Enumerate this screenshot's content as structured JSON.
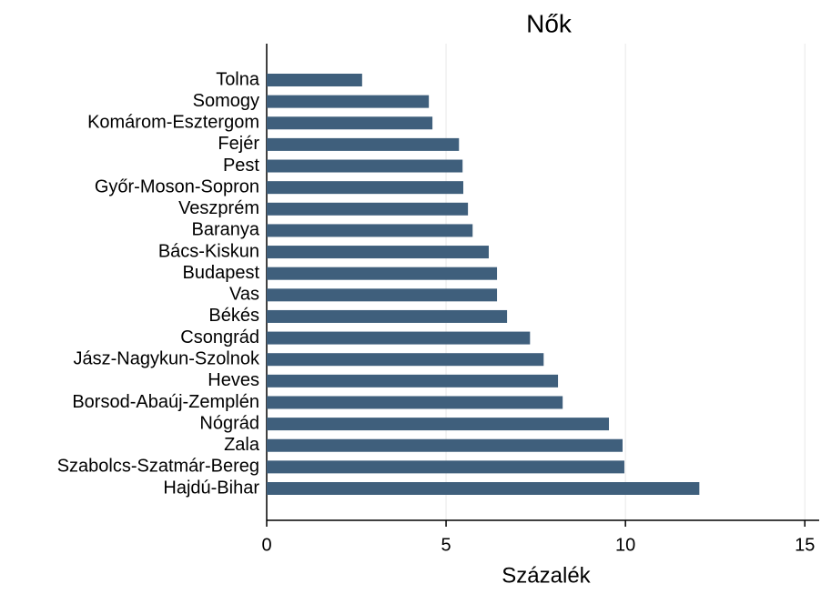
{
  "chart_data": {
    "type": "barh",
    "title": "Nők",
    "xlabel": "Százalék",
    "categories": [
      "Tolna",
      "Somogy",
      "Komárom-Esztergom",
      "Fejér",
      "Pest",
      "Győr-Moson-Sopron",
      "Veszprém",
      "Baranya",
      "Bács-Kiskun",
      "Budapest",
      "Vas",
      "Békés",
      "Csongrád",
      "Jász-Nagykun-Szolnok",
      "Heves",
      "Borsod-Abaúj-Zemplén",
      "Nógrád",
      "Zala",
      "Szabolcs-Szatmár-Bereg",
      "Hajdú-Bihar"
    ],
    "values": [
      2.66,
      4.52,
      4.62,
      5.36,
      5.46,
      5.48,
      5.61,
      5.74,
      6.19,
      6.42,
      6.42,
      6.7,
      7.34,
      7.72,
      8.12,
      8.25,
      9.54,
      9.92,
      9.97,
      12.06
    ],
    "color": "#3f5f7c",
    "xlim": [
      0,
      15.4
    ],
    "xticks": [
      0,
      5,
      10,
      15
    ],
    "grid": true
  }
}
